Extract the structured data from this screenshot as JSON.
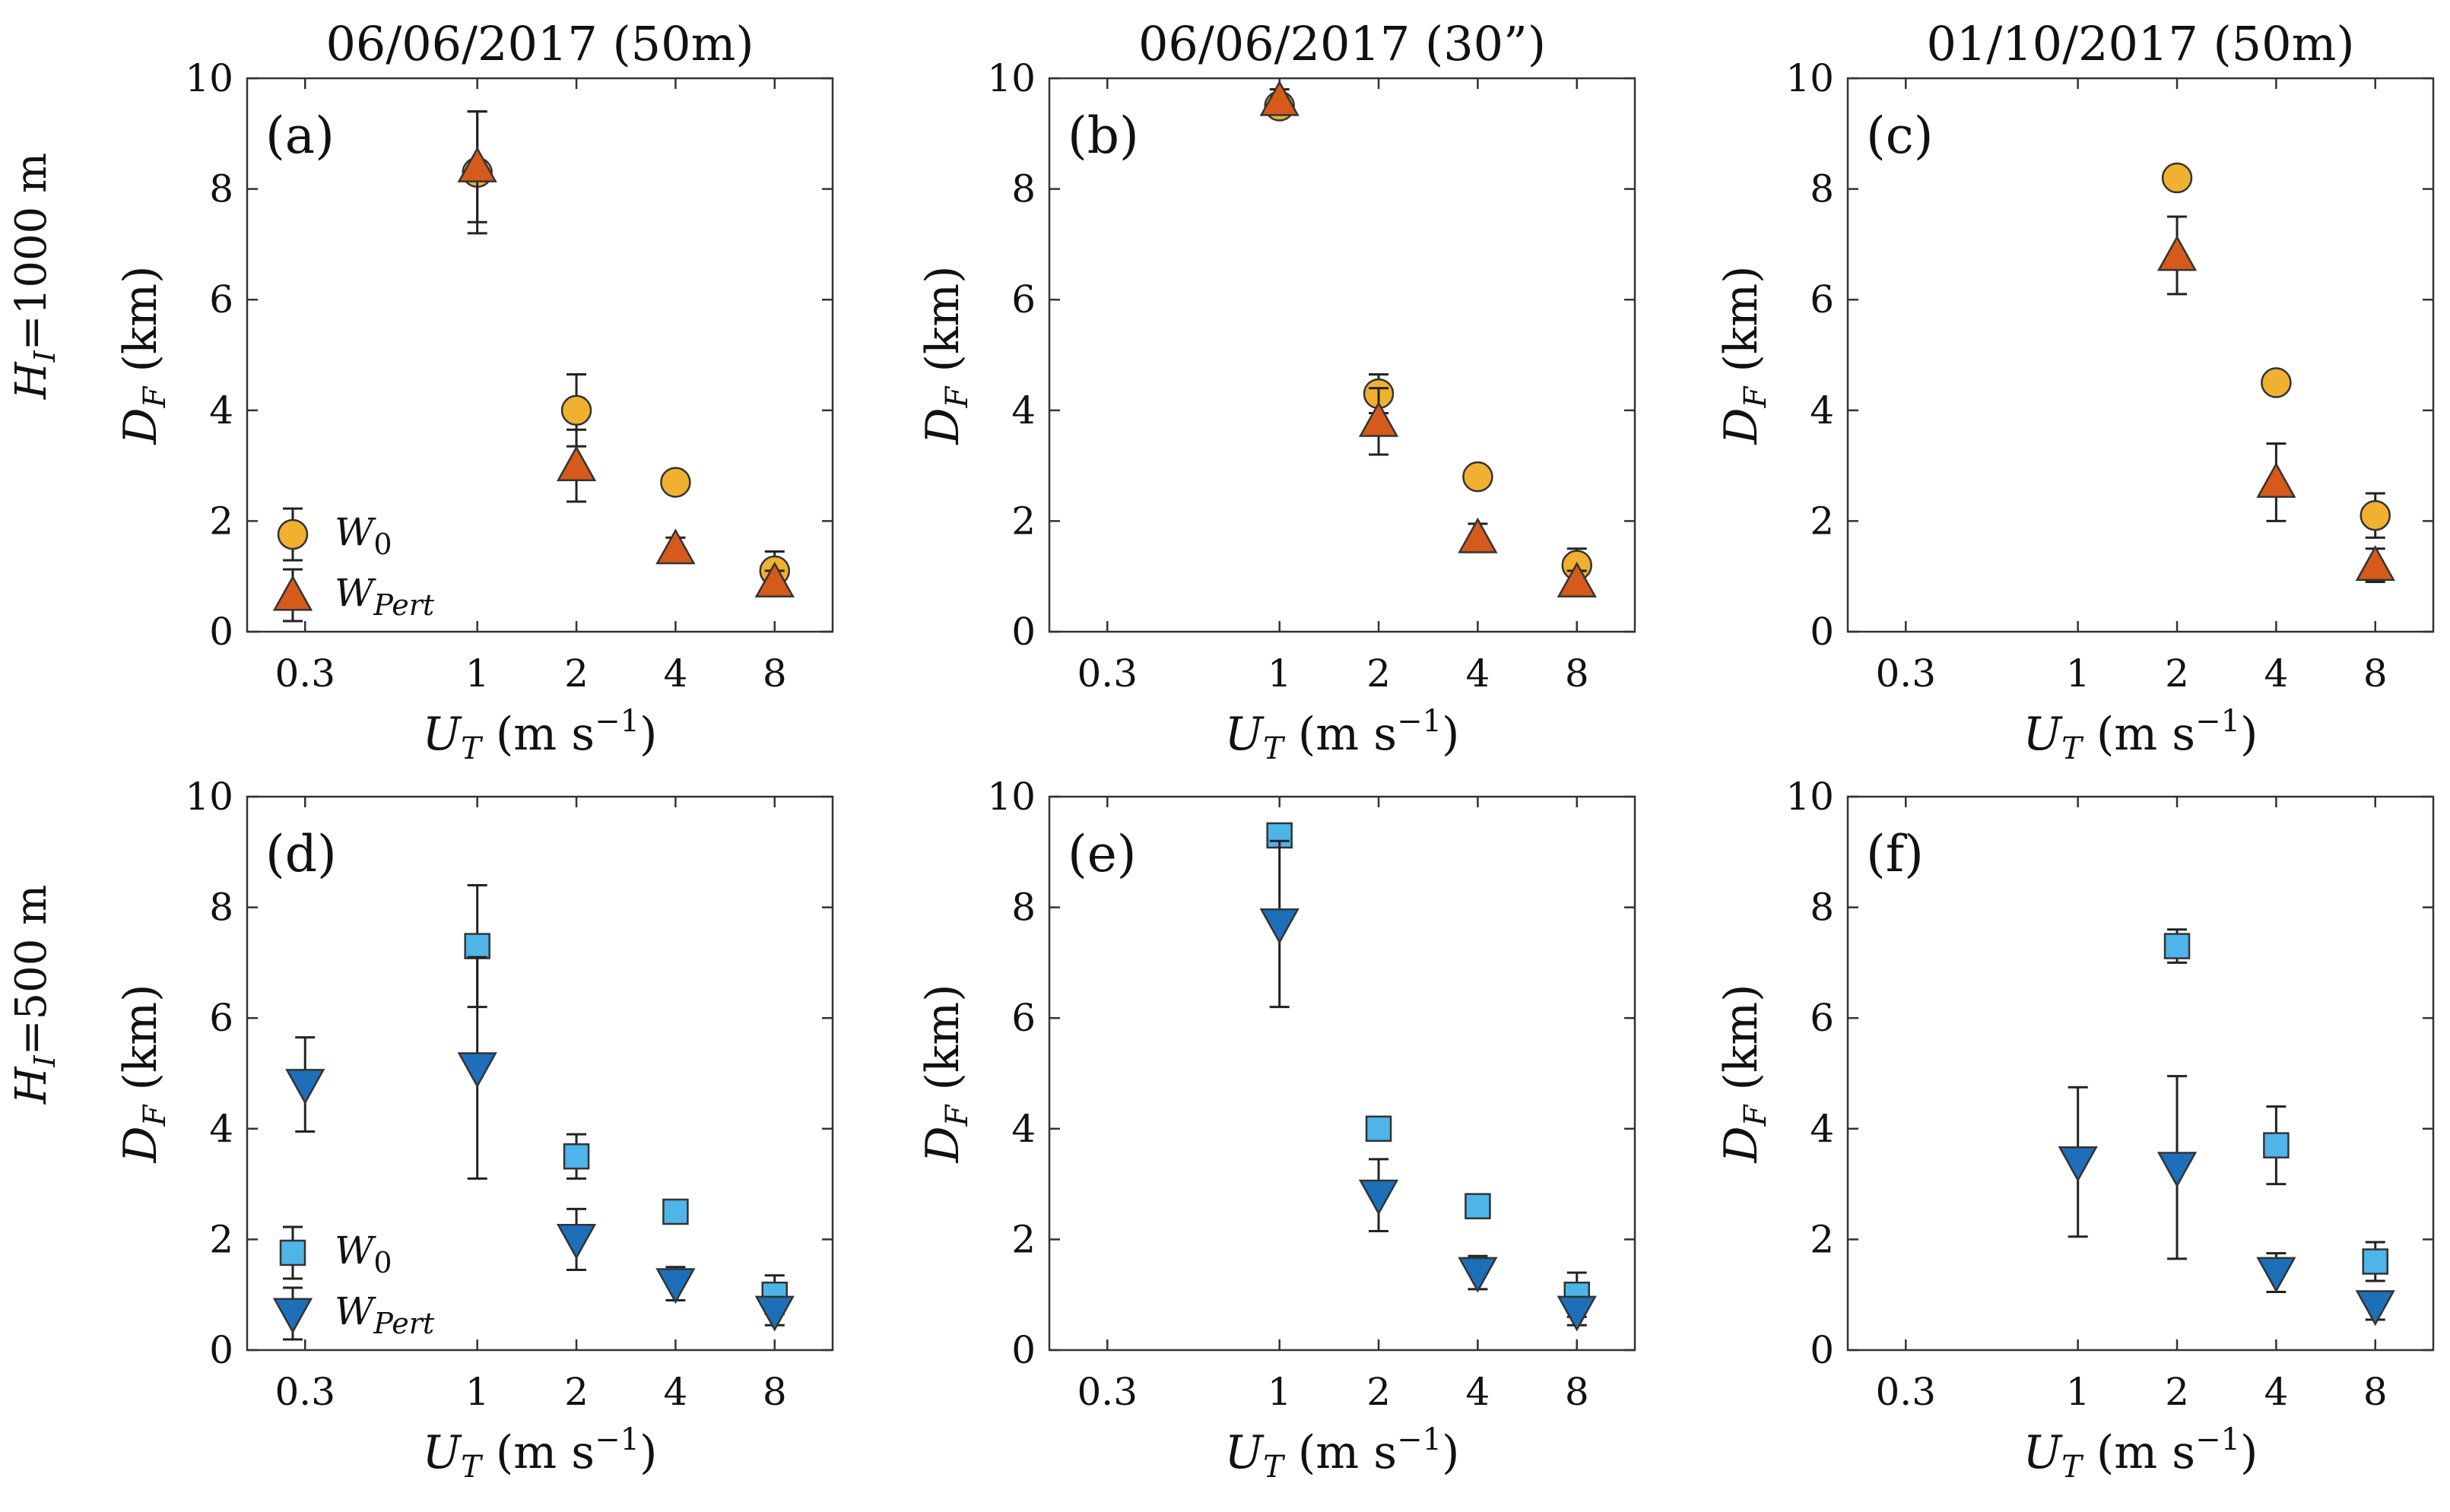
{
  "colors": {
    "w0_orange": "#F0B030",
    "wpert_red": "#D55A1C",
    "w0_lightblue": "#4FB4E8",
    "wpert_blue": "#1C6FB8",
    "edge": "#333333"
  },
  "row_labels": [
    "H_I=1000 m",
    "H_I=500 m"
  ],
  "column_titles": [
    "06/06/2017 (50m)",
    "06/06/2017 (30”)",
    "01/10/2017 (50m)"
  ],
  "legend": {
    "w0": "W₀",
    "wpert": "W_Pert"
  },
  "chart_data": [
    {
      "type": "scatter",
      "panel": "(a)",
      "title": "06/06/2017 (50m)",
      "xlabel": "U_T (m s⁻¹)",
      "ylabel": "D_F (km)",
      "xscale": "log",
      "xlim": [
        0.2,
        12
      ],
      "ylim": [
        0,
        10
      ],
      "xticks": [
        0.3,
        1,
        2,
        4,
        8
      ],
      "xtick_labels": [
        "0.3",
        "1",
        "2",
        "4",
        "8"
      ],
      "yticks": [
        0,
        2,
        4,
        6,
        8,
        10
      ],
      "ytick_labels": [
        "0",
        "2",
        "4",
        "6",
        "8",
        "10"
      ],
      "legend_position": "lower-left",
      "series": [
        {
          "name": "W_0",
          "marker": "circle",
          "color": "#F0B030",
          "x": [
            1,
            2,
            4,
            8
          ],
          "y": [
            8.3,
            4.0,
            2.7,
            1.1
          ],
          "err": [
            1.1,
            0.65,
            0.15,
            0.35
          ]
        },
        {
          "name": "W_Pert",
          "marker": "triangle-up",
          "color": "#D55A1C",
          "x": [
            1,
            2,
            4,
            8
          ],
          "y": [
            8.4,
            3.0,
            1.5,
            0.9
          ],
          "err": [
            1.0,
            0.65,
            0.2,
            0.2
          ]
        }
      ]
    },
    {
      "type": "scatter",
      "panel": "(b)",
      "title": "06/06/2017 (30”)",
      "xlabel": "U_T (m s⁻¹)",
      "ylabel": "D_F (km)",
      "xscale": "log",
      "xlim": [
        0.2,
        12
      ],
      "ylim": [
        0,
        10
      ],
      "xticks": [
        0.3,
        1,
        2,
        4,
        8
      ],
      "xtick_labels": [
        "0.3",
        "1",
        "2",
        "4",
        "8"
      ],
      "yticks": [
        0,
        2,
        4,
        6,
        8,
        10
      ],
      "ytick_labels": [
        "0",
        "2",
        "4",
        "6",
        "8",
        "10"
      ],
      "series": [
        {
          "name": "W_0",
          "marker": "circle",
          "color": "#F0B030",
          "x": [
            1,
            2,
            4,
            8
          ],
          "y": [
            9.5,
            4.3,
            2.8,
            1.2
          ],
          "err": [
            0.15,
            0.35,
            0.1,
            0.3
          ]
        },
        {
          "name": "W_Pert",
          "marker": "triangle-up",
          "color": "#D55A1C",
          "x": [
            1,
            2,
            4,
            8
          ],
          "y": [
            9.6,
            3.8,
            1.7,
            0.9
          ],
          "err": [
            0.2,
            0.6,
            0.25,
            0.2
          ]
        }
      ]
    },
    {
      "type": "scatter",
      "panel": "(c)",
      "title": "01/10/2017 (50m)",
      "xlabel": "U_T (m s⁻¹)",
      "ylabel": "D_F (km)",
      "xscale": "log",
      "xlim": [
        0.2,
        12
      ],
      "ylim": [
        0,
        10
      ],
      "xticks": [
        0.3,
        1,
        2,
        4,
        8
      ],
      "xtick_labels": [
        "0.3",
        "1",
        "2",
        "4",
        "8"
      ],
      "yticks": [
        0,
        2,
        4,
        6,
        8,
        10
      ],
      "ytick_labels": [
        "0",
        "2",
        "4",
        "6",
        "8",
        "10"
      ],
      "series": [
        {
          "name": "W_0",
          "marker": "circle",
          "color": "#F0B030",
          "x": [
            2,
            4,
            8
          ],
          "y": [
            8.2,
            4.5,
            2.1
          ],
          "err": [
            0.1,
            0.1,
            0.4
          ]
        },
        {
          "name": "W_Pert",
          "marker": "triangle-up",
          "color": "#D55A1C",
          "x": [
            2,
            4,
            8
          ],
          "y": [
            6.8,
            2.7,
            1.2
          ],
          "err": [
            0.7,
            0.7,
            0.3
          ]
        }
      ]
    },
    {
      "type": "scatter",
      "panel": "(d)",
      "xlabel": "U_T (m s⁻¹)",
      "ylabel": "D_F (km)",
      "xscale": "log",
      "xlim": [
        0.2,
        12
      ],
      "ylim": [
        0,
        10
      ],
      "xticks": [
        0.3,
        1,
        2,
        4,
        8
      ],
      "xtick_labels": [
        "0.3",
        "1",
        "2",
        "4",
        "8"
      ],
      "yticks": [
        0,
        2,
        4,
        6,
        8,
        10
      ],
      "ytick_labels": [
        "0",
        "2",
        "4",
        "6",
        "8",
        "10"
      ],
      "legend_position": "lower-left",
      "series": [
        {
          "name": "W_0",
          "marker": "square",
          "color": "#4FB4E8",
          "x": [
            1,
            2,
            4,
            8
          ],
          "y": [
            7.3,
            3.5,
            2.5,
            1.0
          ],
          "err": [
            1.1,
            0.4,
            0.1,
            0.35
          ]
        },
        {
          "name": "W_Pert",
          "marker": "triangle-down",
          "color": "#1C6FB8",
          "x": [
            0.3,
            1,
            2,
            4,
            8
          ],
          "y": [
            4.8,
            5.1,
            2.0,
            1.2,
            0.7
          ],
          "err": [
            0.85,
            2.0,
            0.55,
            0.3,
            0.25
          ]
        }
      ]
    },
    {
      "type": "scatter",
      "panel": "(e)",
      "xlabel": "U_T (m s⁻¹)",
      "ylabel": "D_F (km)",
      "xscale": "log",
      "xlim": [
        0.2,
        12
      ],
      "ylim": [
        0,
        10
      ],
      "xticks": [
        0.3,
        1,
        2,
        4,
        8
      ],
      "xtick_labels": [
        "0.3",
        "1",
        "2",
        "4",
        "8"
      ],
      "yticks": [
        0,
        2,
        4,
        6,
        8,
        10
      ],
      "ytick_labels": [
        "0",
        "2",
        "4",
        "6",
        "8",
        "10"
      ],
      "series": [
        {
          "name": "W_0",
          "marker": "square",
          "color": "#4FB4E8",
          "x": [
            1,
            2,
            4,
            8
          ],
          "y": [
            9.3,
            4.0,
            2.6,
            1.0
          ],
          "err": [
            0.1,
            0.15,
            0.1,
            0.4
          ]
        },
        {
          "name": "W_Pert",
          "marker": "triangle-down",
          "color": "#1C6FB8",
          "x": [
            1,
            2,
            4,
            8
          ],
          "y": [
            7.7,
            2.8,
            1.4,
            0.7
          ],
          "err": [
            1.5,
            0.65,
            0.3,
            0.25
          ]
        }
      ]
    },
    {
      "type": "scatter",
      "panel": "(f)",
      "xlabel": "U_T (m s⁻¹)",
      "ylabel": "D_F (km)",
      "xscale": "log",
      "xlim": [
        0.2,
        12
      ],
      "ylim": [
        0,
        10
      ],
      "xticks": [
        0.3,
        1,
        2,
        4,
        8
      ],
      "xtick_labels": [
        "0.3",
        "1",
        "2",
        "4",
        "8"
      ],
      "yticks": [
        0,
        2,
        4,
        6,
        8,
        10
      ],
      "ytick_labels": [
        "0",
        "2",
        "4",
        "6",
        "8",
        "10"
      ],
      "series": [
        {
          "name": "W_0",
          "marker": "square",
          "color": "#4FB4E8",
          "x": [
            2,
            4,
            8
          ],
          "y": [
            7.3,
            3.7,
            1.6
          ],
          "err": [
            0.3,
            0.7,
            0.35
          ]
        },
        {
          "name": "W_Pert",
          "marker": "triangle-down",
          "color": "#1C6FB8",
          "x": [
            1,
            2,
            4,
            8
          ],
          "y": [
            3.4,
            3.3,
            1.4,
            0.8
          ],
          "err": [
            1.35,
            1.65,
            0.35,
            0.25
          ]
        }
      ]
    }
  ]
}
